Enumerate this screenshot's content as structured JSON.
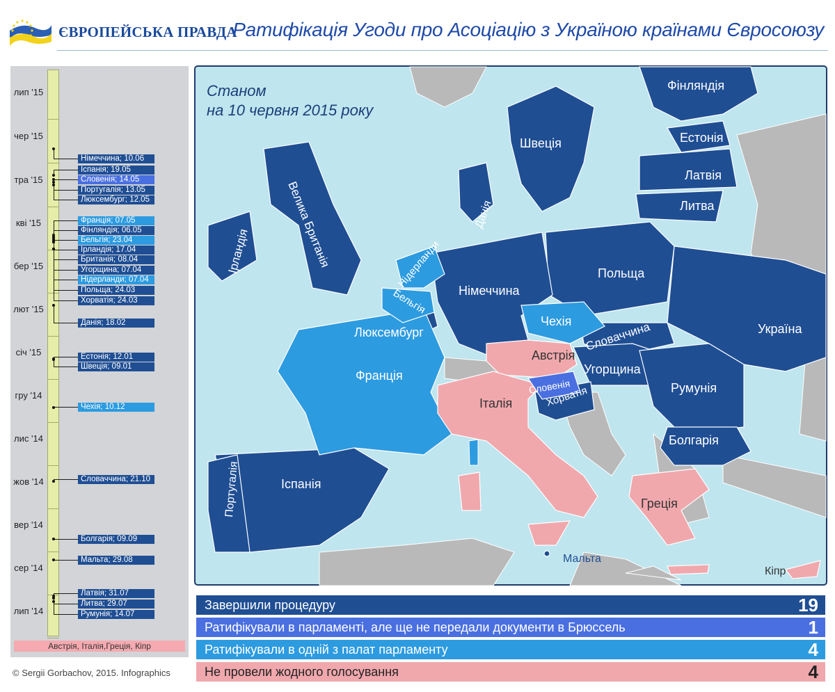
{
  "header": {
    "logo_text": "ЄВРОПЕЙСЬКА ПРАВДА",
    "title": "Ратифікація Угоди про Асоціацію з Україною країнами Євросоюзу"
  },
  "map": {
    "subtitle_line1": "Станом",
    "subtitle_line2": "на 10 червня 2015 року",
    "colors": {
      "sea": "#bfe5ee",
      "completed": "#1f4e93",
      "parliament_not_sent": "#4a6fe0",
      "one_chamber": "#2d9be0",
      "no_vote": "#f0a8ad",
      "non_eu": "#b9b9b9"
    },
    "countries": [
      {
        "name": "Ірландія",
        "status": "completed"
      },
      {
        "name": "Велика Британія",
        "status": "completed"
      },
      {
        "name": "Данія",
        "status": "completed"
      },
      {
        "name": "Швеція",
        "status": "completed"
      },
      {
        "name": "Фінляндія",
        "status": "completed"
      },
      {
        "name": "Естонія",
        "status": "completed"
      },
      {
        "name": "Латвія",
        "status": "completed"
      },
      {
        "name": "Литва",
        "status": "completed"
      },
      {
        "name": "Польща",
        "status": "completed"
      },
      {
        "name": "Німеччина",
        "status": "completed"
      },
      {
        "name": "Нідерланди",
        "status": "one_chamber"
      },
      {
        "name": "Бельгія",
        "status": "one_chamber"
      },
      {
        "name": "Люксембург",
        "status": "completed"
      },
      {
        "name": "Франція",
        "status": "one_chamber"
      },
      {
        "name": "Чехія",
        "status": "one_chamber"
      },
      {
        "name": "Словаччина",
        "status": "completed"
      },
      {
        "name": "Австрія",
        "status": "no_vote"
      },
      {
        "name": "Угорщина",
        "status": "completed"
      },
      {
        "name": "Словенія",
        "status": "parliament_not_sent"
      },
      {
        "name": "Хорватія",
        "status": "completed"
      },
      {
        "name": "Італія",
        "status": "no_vote"
      },
      {
        "name": "Румунія",
        "status": "completed"
      },
      {
        "name": "Болгарія",
        "status": "completed"
      },
      {
        "name": "Україна",
        "status": "completed"
      },
      {
        "name": "Португалія",
        "status": "completed"
      },
      {
        "name": "Іспанія",
        "status": "completed"
      },
      {
        "name": "Греція",
        "status": "no_vote"
      },
      {
        "name": "Мальта",
        "status": "completed"
      },
      {
        "name": "Кіпр",
        "status": "no_vote"
      }
    ]
  },
  "timeline": {
    "months": [
      "лип '15",
      "чер '15",
      "тра '15",
      "кві '15",
      "бер '15",
      "лют '15",
      "січ '15",
      "гру '14",
      "лис '14",
      "жов '14",
      "вер '14",
      "сер '14",
      "лип '14"
    ],
    "entries": [
      {
        "label": "Німеччина; 10.06",
        "status": "completed"
      },
      {
        "label": "Іспанія; 19.05",
        "status": "completed"
      },
      {
        "label": "Словенія; 14.05",
        "status": "parliament_not_sent"
      },
      {
        "label": "Португалія; 13.05",
        "status": "completed"
      },
      {
        "label": "Люксембург; 12.05",
        "status": "completed"
      },
      {
        "label": "Франція; 07.05",
        "status": "one_chamber"
      },
      {
        "label": "Фінляндія; 06.05",
        "status": "completed"
      },
      {
        "label": "Бельгія; 23.04",
        "status": "one_chamber"
      },
      {
        "label": "Ірландія; 17.04",
        "status": "completed"
      },
      {
        "label": "Британія; 08.04",
        "status": "completed"
      },
      {
        "label": "Угорщина; 07.04",
        "status": "completed"
      },
      {
        "label": "Нідерланди; 07.04",
        "status": "one_chamber"
      },
      {
        "label": "Польща; 24.03",
        "status": "completed"
      },
      {
        "label": "Хорватія; 24.03",
        "status": "completed"
      },
      {
        "label": "Данія; 18.02",
        "status": "completed"
      },
      {
        "label": "Естонія; 12.01",
        "status": "completed"
      },
      {
        "label": "Швеція; 09.01",
        "status": "completed"
      },
      {
        "label": "Чехія; 10.12",
        "status": "one_chamber"
      },
      {
        "label": "Словаччина; 21.10",
        "status": "completed"
      },
      {
        "label": "Болгарія; 09.09",
        "status": "completed"
      },
      {
        "label": "Мальта; 29.08",
        "status": "completed"
      },
      {
        "label": "Латвія; 31.07",
        "status": "completed"
      },
      {
        "label": "Литва; 29.07",
        "status": "completed"
      },
      {
        "label": "Румунія; 14.07",
        "status": "completed"
      }
    ],
    "no_vote_label": "Австрія, Італія,Греція, Кіпр"
  },
  "legend": [
    {
      "label": "Завершили процедуру",
      "count": "19",
      "status": "completed"
    },
    {
      "label": "Ратифікували в парламенті, але ще не передали документи  в Брюссель",
      "count": "1",
      "status": "parliament_not_sent"
    },
    {
      "label": "Ратифікували в одній з палат парламенту",
      "count": "4",
      "status": "one_chamber"
    },
    {
      "label": "Не провели жодного голосування",
      "count": "4",
      "status": "no_vote"
    }
  ],
  "copyright": "© Sergii Gorbachov, 2015. Infographics"
}
